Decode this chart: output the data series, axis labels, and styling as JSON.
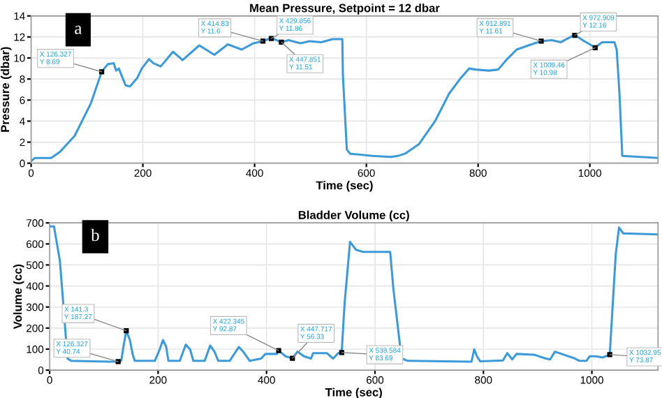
{
  "chart_data": [
    {
      "type": "line",
      "title": "Mean Pressure, Setpoint = 12 dbar",
      "xlabel": "Time (sec)",
      "ylabel": "Pressure (dbar)",
      "x": [
        0,
        7,
        36,
        52,
        78,
        107,
        126.327,
        137,
        148,
        152,
        157,
        169,
        177,
        190,
        198,
        211,
        219,
        232,
        254,
        271,
        301,
        328,
        352,
        377,
        398,
        414.83,
        429.856,
        447.851,
        461,
        482,
        498,
        519,
        540,
        557,
        558,
        565,
        571,
        611,
        644,
        657,
        669,
        694,
        723,
        748,
        769,
        784,
        796,
        819,
        836,
        852,
        869,
        890,
        912.891,
        932,
        948,
        972.909,
        990,
        1009.46,
        1022,
        1044,
        1048,
        1053,
        1058,
        1122
      ],
      "series": [
        {
          "color": "#3d9ad8",
          "values": [
            0.2,
            0.5,
            0.5,
            1.1,
            2.6,
            5.7,
            8.7,
            9.4,
            9.5,
            8.8,
            9.0,
            7.4,
            7.3,
            8.1,
            9.0,
            9.9,
            9.5,
            9.2,
            10.6,
            9.8,
            11.2,
            10.3,
            11.3,
            10.8,
            11.4,
            11.6,
            11.9,
            11.5,
            11.7,
            11.4,
            11.6,
            11.5,
            11.8,
            11.8,
            8.4,
            1.3,
            0.9,
            0.7,
            0.6,
            0.7,
            0.9,
            1.8,
            4.0,
            6.6,
            8.1,
            9.0,
            8.9,
            8.8,
            8.9,
            9.9,
            10.8,
            11.2,
            11.6,
            11.7,
            11.5,
            12.2,
            11.6,
            11.0,
            11.5,
            11.5,
            10.8,
            6.6,
            0.7,
            0.5
          ]
        }
      ],
      "xlim": [
        0,
        1122
      ],
      "ylim": [
        0,
        14
      ],
      "xticks": [
        0,
        200,
        400,
        600,
        800,
        1000
      ],
      "yticks": [
        0,
        2,
        4,
        6,
        8,
        10,
        12,
        14
      ],
      "grid": true,
      "annotations": [
        "a",
        {
          "text": "X 126.327\nY 8.69",
          "x": 126.327,
          "y": 8.69
        },
        {
          "text": "X 414.83\nY 11.6",
          "x": 414.83,
          "y": 11.6
        },
        {
          "text": "X 429.856\nY 11.86",
          "x": 429.856,
          "y": 11.86
        },
        {
          "text": "X 447.851\nY 11.51",
          "x": 447.851,
          "y": 11.51
        },
        {
          "text": "X 912.891\nY 11.61",
          "x": 912.891,
          "y": 11.61
        },
        {
          "text": "X 972.909\nY 12.16",
          "x": 972.909,
          "y": 12.16
        },
        {
          "text": "X 1009.46\nY 10.98",
          "x": 1009.46,
          "y": 10.98
        }
      ]
    },
    {
      "type": "line",
      "title": "Bladder Volume (cc)",
      "xlabel": "Time (sec)",
      "ylabel": "Volume (cc)",
      "x": [
        0,
        8,
        19,
        33,
        40,
        111,
        126.327,
        132,
        136,
        141.3,
        148,
        153,
        157,
        194,
        203,
        209,
        215,
        219,
        240,
        251,
        259,
        265,
        286,
        296,
        304,
        311,
        332,
        349,
        357,
        369,
        390,
        398,
        419,
        422.345,
        435,
        447.717,
        457,
        469,
        482,
        486,
        511,
        523,
        532,
        538.584,
        544,
        554,
        565,
        578,
        628,
        634,
        649,
        661,
        778,
        783,
        788,
        794,
        836,
        844,
        853,
        861,
        894,
        915,
        923,
        932,
        944,
        969,
        977,
        990,
        996,
        1007,
        1020,
        1032.95,
        1044,
        1050,
        1058,
        1122
      ],
      "series": [
        {
          "color": "#3d9ad8",
          "values": [
            683,
            683,
            517,
            55,
            44,
            40,
            41,
            44,
            110,
            187,
            143,
            77,
            44,
            44,
            99,
            143,
            110,
            44,
            44,
            121,
            99,
            44,
            44,
            117,
            88,
            44,
            44,
            110,
            88,
            44,
            55,
            77,
            77,
            93,
            66,
            56,
            88,
            66,
            55,
            81,
            81,
            55,
            81,
            84,
            319,
            610,
            572,
            562,
            562,
            385,
            55,
            44,
            40,
            99,
            66,
            42,
            46,
            81,
            51,
            77,
            73,
            55,
            51,
            88,
            77,
            55,
            44,
            44,
            66,
            66,
            60,
            74,
            550,
            678,
            650,
            645
          ]
        }
      ],
      "xlim": [
        0,
        1122
      ],
      "ylim": [
        0,
        700
      ],
      "xticks": [
        0,
        200,
        400,
        600,
        800,
        1000
      ],
      "yticks": [
        0,
        100,
        200,
        300,
        400,
        500,
        600,
        700
      ],
      "grid": true,
      "annotations": [
        "b",
        {
          "text": "X 141.3\nY 187.27",
          "x": 141.3,
          "y": 187.27
        },
        {
          "text": "X 126.327\nY 40.74",
          "x": 126.327,
          "y": 40.74
        },
        {
          "text": "X 422.345\nY 92.87",
          "x": 422.345,
          "y": 92.87
        },
        {
          "text": "X 447.717\nY 56.33",
          "x": 447.717,
          "y": 56.33
        },
        {
          "text": "X 538.584\nY 83.69",
          "x": 538.584,
          "y": 83.69
        },
        {
          "text": "X 1032.95\nY 73.87",
          "x": 1032.95,
          "y": 73.87
        }
      ]
    }
  ]
}
